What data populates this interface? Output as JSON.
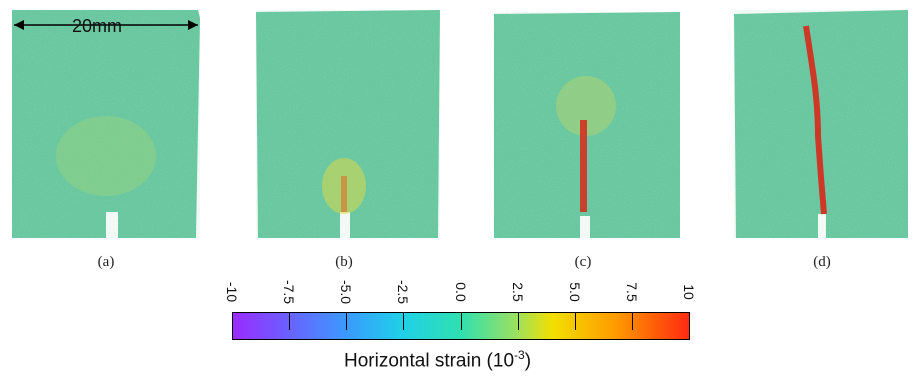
{
  "scale_bar": {
    "label": "20mm"
  },
  "panels": [
    {
      "label": "(a)"
    },
    {
      "label": "(b)"
    },
    {
      "label": "(c)"
    },
    {
      "label": "(d)"
    }
  ],
  "colorbar": {
    "title": "Horizontal strain (10",
    "title_exp": "-3",
    "title_end": ")",
    "ticks": [
      "-10",
      "-7.5",
      "-5.0",
      "-2.5",
      "0.0",
      "2.5",
      "5.0",
      "7.5",
      "10"
    ],
    "colors": [
      "#9b2bff",
      "#3a9bff",
      "#2fe0b0",
      "#f2e000",
      "#ff2a10"
    ]
  }
}
